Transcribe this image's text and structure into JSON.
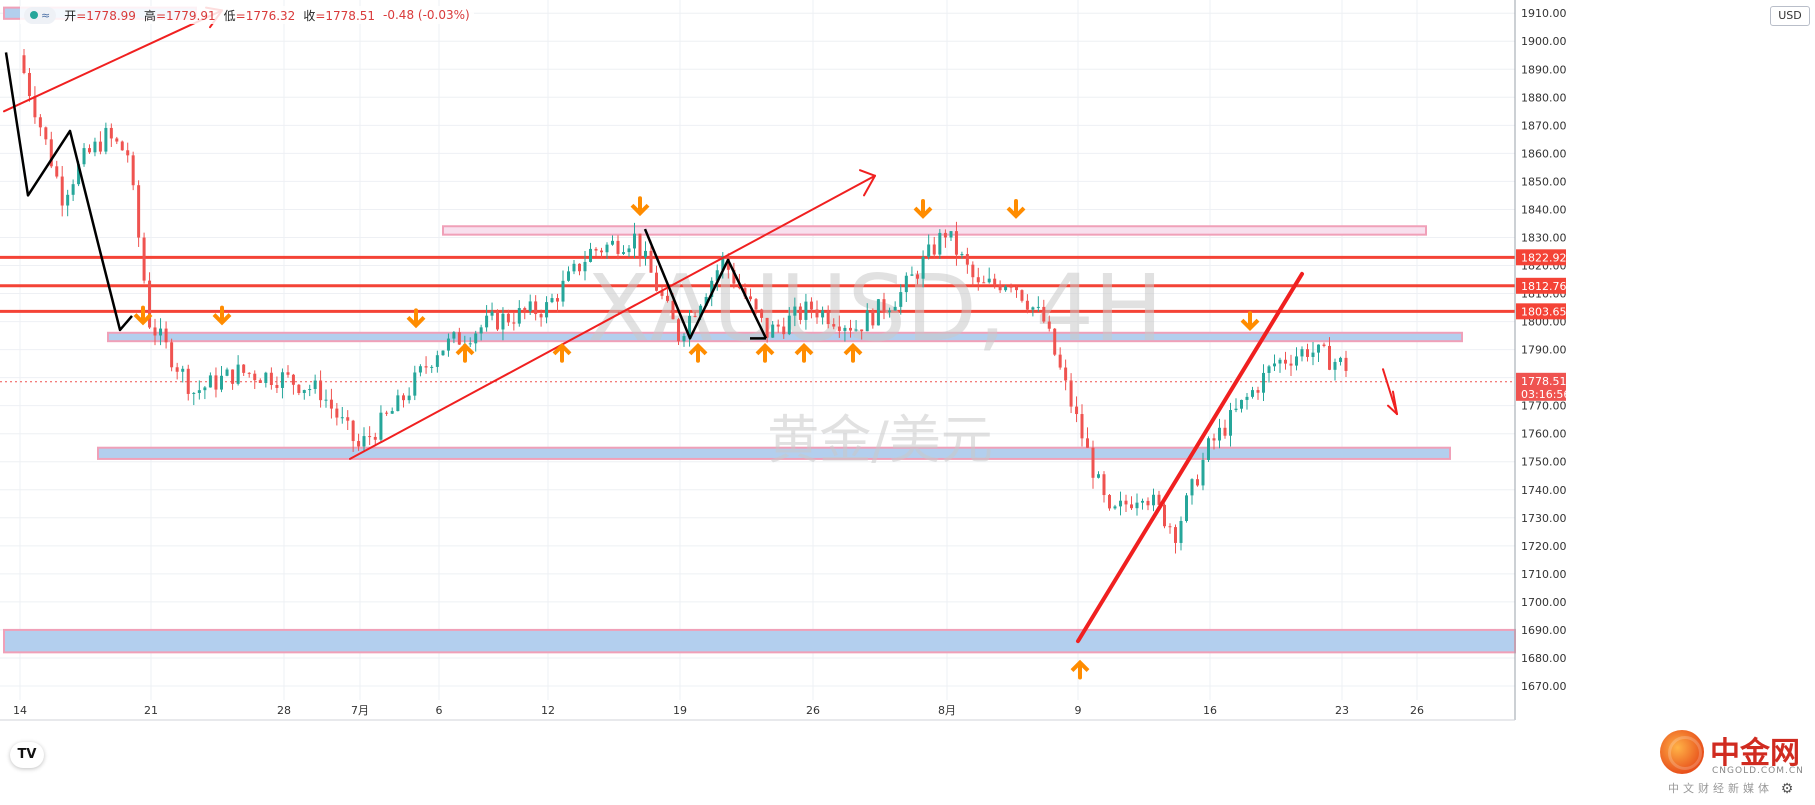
{
  "header": {
    "open_label": "开",
    "open_value": "=1778.99",
    "high_label": "高",
    "high_value": "=1779.91",
    "low_label": "低",
    "low_value": "=1776.32",
    "close_label": "收",
    "close_value": "=1778.51",
    "change": "-0.48 (-0.03%)",
    "wave_icon": "≈"
  },
  "currency_button": "USD",
  "watermark": {
    "symbol": "XAUUSD, 4H",
    "name": "黄金/美元"
  },
  "tv_logo_text": "TV",
  "brand": {
    "name": "中金网",
    "url": "CNGOLD.COM.CN",
    "sub": "中文财经新媒体"
  },
  "price_labels": {
    "level_1": "1822.92",
    "level_2": "1812.76",
    "level_3": "1803.65",
    "current_price": "1778.51",
    "countdown": "03:16:56"
  },
  "colors": {
    "up": "#26a69a",
    "down": "#ef5350",
    "resistance_line": "#f44336",
    "zone_fill": "#b3cfee",
    "zone_border": "#f0a0b8",
    "arrow": "#ff8c00",
    "trendline": "#f02020",
    "wave": "#000000"
  },
  "chart_data": {
    "type": "candlestick",
    "title": "XAUUSD, 4H",
    "subtitle": "黄金/美元",
    "y_axis": {
      "ticks": [
        1670,
        1680,
        1690,
        1700,
        1710,
        1720,
        1730,
        1740,
        1750,
        1760,
        1770,
        1780,
        1790,
        1800,
        1810,
        1820,
        1830,
        1840,
        1850,
        1860,
        1870,
        1880,
        1890,
        1900,
        1910
      ],
      "range": [
        1665,
        1914
      ]
    },
    "x_axis": {
      "ticks": [
        "14",
        "21",
        "28",
        "7月",
        "6",
        "12",
        "19",
        "26",
        "8月",
        "9",
        "16",
        "23",
        "26"
      ]
    },
    "horizontal_lines": [
      1822.92,
      1812.76,
      1803.65
    ],
    "zones": [
      {
        "low": 1908,
        "high": 1912,
        "end_index": 0
      },
      {
        "low": 1793,
        "high": 1796,
        "end_index": 12
      },
      {
        "low": 1751,
        "high": 1755,
        "end_index": 12
      },
      {
        "low": 1682,
        "high": 1690,
        "end_index": 12
      },
      {
        "low": 1831,
        "high": 1834,
        "end_index": 11
      }
    ],
    "price_path": [
      {
        "x": "14",
        "price": 1895
      },
      {
        "x": "14",
        "price": 1870
      },
      {
        "x": "14",
        "price": 1845
      },
      {
        "x": "14",
        "price": 1858
      },
      {
        "x": "14",
        "price": 1866
      },
      {
        "x": "14",
        "price": 1860
      },
      {
        "x": "21",
        "price": 1800
      },
      {
        "x": "21",
        "price": 1775
      },
      {
        "x": "21",
        "price": 1782
      },
      {
        "x": "28",
        "price": 1780
      },
      {
        "x": "28",
        "price": 1775
      },
      {
        "x": "7月",
        "price": 1755
      },
      {
        "x": "7月",
        "price": 1770
      },
      {
        "x": "6",
        "price": 1790
      },
      {
        "x": "6",
        "price": 1800
      },
      {
        "x": "12",
        "price": 1805
      },
      {
        "x": "12",
        "price": 1825
      },
      {
        "x": "12",
        "price": 1830
      },
      {
        "x": "19",
        "price": 1795
      },
      {
        "x": "19",
        "price": 1822
      },
      {
        "x": "19",
        "price": 1796
      },
      {
        "x": "26",
        "price": 1805
      },
      {
        "x": "26",
        "price": 1798
      },
      {
        "x": "26",
        "price": 1810
      },
      {
        "x": "8月",
        "price": 1832
      },
      {
        "x": "8月",
        "price": 1812
      },
      {
        "x": "8月",
        "price": 1815
      },
      {
        "x": "8月",
        "price": 1800
      },
      {
        "x": "9",
        "price": 1765
      },
      {
        "x": "9",
        "price": 1730
      },
      {
        "x": "9",
        "price": 1740
      },
      {
        "x": "9",
        "price": 1725
      },
      {
        "x": "16",
        "price": 1755
      },
      {
        "x": "16",
        "price": 1770
      },
      {
        "x": "16",
        "price": 1785
      },
      {
        "x": "16",
        "price": 1790
      },
      {
        "x": "23",
        "price": 1785
      },
      {
        "x": "23",
        "price": 1778.51
      }
    ],
    "annotations": [
      "resistance 1822.92",
      "resistance 1812.76",
      "resistance 1803.65",
      "support zones",
      "uptrend line",
      "down arrow projection"
    ]
  }
}
